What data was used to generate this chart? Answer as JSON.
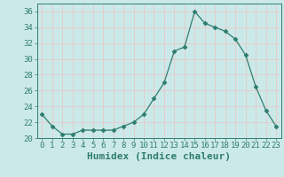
{
  "x": [
    0,
    1,
    2,
    3,
    4,
    5,
    6,
    7,
    8,
    9,
    10,
    11,
    12,
    13,
    14,
    15,
    16,
    17,
    18,
    19,
    20,
    21,
    22,
    23
  ],
  "y": [
    23,
    21.5,
    20.5,
    20.5,
    21,
    21,
    21,
    21,
    21.5,
    22,
    23,
    25,
    27,
    31,
    31.5,
    36,
    34.5,
    34,
    33.5,
    32.5,
    30.5,
    26.5,
    23.5,
    21.5
  ],
  "line_color": "#2e7d6e",
  "marker": "D",
  "marker_size": 2.5,
  "bg_color": "#cce9e9",
  "grid_color": "#e8c8c8",
  "xlabel": "Humidex (Indice chaleur)",
  "ylim": [
    20,
    37
  ],
  "xlim": [
    -0.5,
    23.5
  ],
  "yticks": [
    20,
    22,
    24,
    26,
    28,
    30,
    32,
    34,
    36
  ],
  "xticks": [
    0,
    1,
    2,
    3,
    4,
    5,
    6,
    7,
    8,
    9,
    10,
    11,
    12,
    13,
    14,
    15,
    16,
    17,
    18,
    19,
    20,
    21,
    22,
    23
  ],
  "font_color": "#2e7d6e",
  "tick_fontsize": 6.5,
  "label_fontsize": 8
}
